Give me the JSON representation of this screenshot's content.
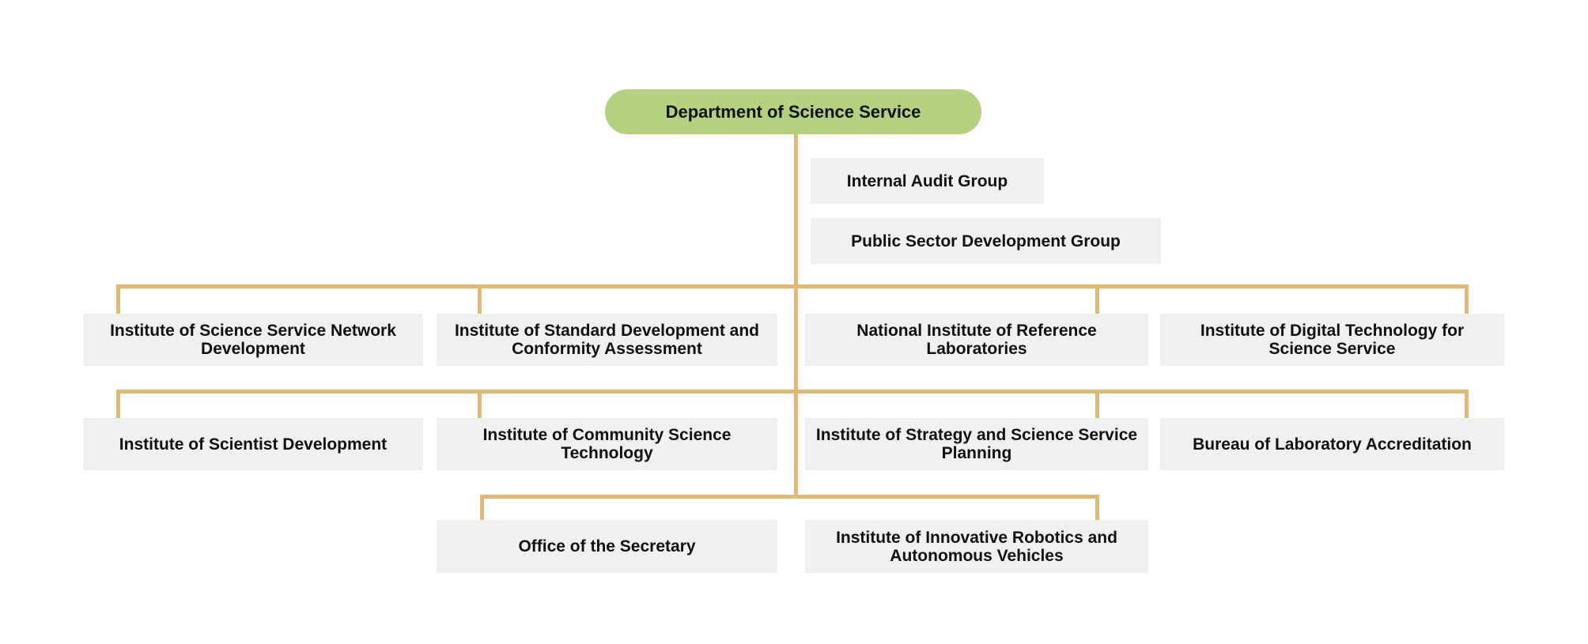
{
  "colors": {
    "page_background": "#ffffff",
    "root_fill": "#b3d17e",
    "node_fill": "#f0f0ee",
    "connector": "#e0ba74",
    "text": "#111111"
  },
  "org": {
    "root": {
      "label": "Department of Science Service"
    },
    "staff_nodes": [
      {
        "label": "Internal Audit Group"
      },
      {
        "label": "Public Sector Development Group"
      }
    ],
    "row1": [
      {
        "label": "Institute of Science Service Network\nDevelopment"
      },
      {
        "label": "Institute of Standard Development and\nConformity Assessment"
      },
      {
        "label": "National Institute of Reference\nLaboratories"
      },
      {
        "label": "Institute of Digital Technology for\nScience Service"
      }
    ],
    "row2": [
      {
        "label": "Institute of Scientist Development"
      },
      {
        "label": "Institute of Community Science\nTechnology"
      },
      {
        "label": "Institute of Strategy and Science Service\nPlanning"
      },
      {
        "label": "Bureau of Laboratory Accreditation"
      }
    ],
    "row3": [
      {
        "label": "Office of the Secretary"
      },
      {
        "label": "Institute of Innovative Robotics and\nAutonomous Vehicles"
      }
    ]
  }
}
